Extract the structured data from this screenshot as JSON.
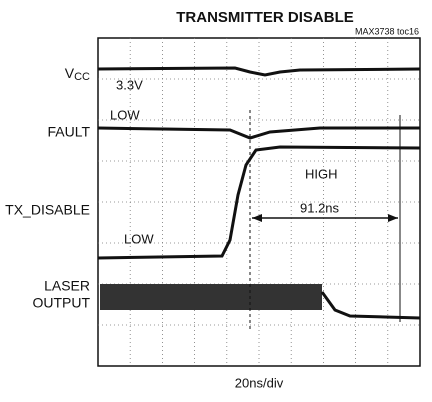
{
  "title": "TRANSMITTER DISABLE",
  "figure_code": "MAX3738 toc16",
  "channel_labels": {
    "vcc": {
      "main": "V",
      "sub": "CC"
    },
    "fault": "FAULT",
    "tx_disable": "TX_DISABLE",
    "laser_output": [
      "LASER",
      "OUTPUT"
    ]
  },
  "annotations": {
    "vcc_level": "3.3V",
    "fault_state": "LOW",
    "tx_high": "HIGH",
    "delay": "91.2ns",
    "tx_low": "LOW"
  },
  "timebase": "20ns/div"
}
